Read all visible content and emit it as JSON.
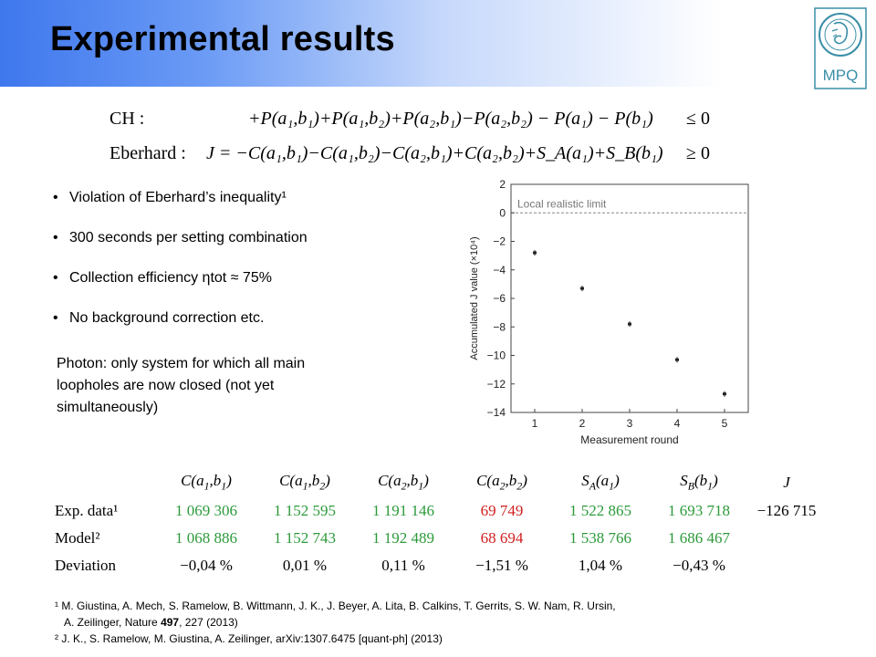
{
  "title": "Experimental results",
  "logo": {
    "text": "MPQ"
  },
  "equations": {
    "ch_label": "CH :",
    "ch_body": "+P(a₁,b₁)+P(a₁,b₂)+P(a₂,b₁)−P(a₂,b₂) − P(a₁) − P(b₁)",
    "ch_rel": "≤ 0",
    "eb_label": "Eberhard :",
    "eb_body": "J  = −C(a₁,b₁)−C(a₁,b₂)−C(a₂,b₁)+C(a₂,b₂)+S_A(a₁)+S_B(b₁)",
    "eb_rel": "≥ 0"
  },
  "bullets": [
    "Violation of Eberhard’s inequality¹",
    "300 seconds per setting combination",
    "Collection efficiency ηtot ≈ 75%",
    "No background correction etc."
  ],
  "note": "Photon: only system for which all main loopholes are now closed (not yet simultaneously)",
  "chart_data": {
    "type": "scatter",
    "xlabel": "Measurement round",
    "ylabel": "Accumulated J value (×10⁴)",
    "x": [
      1,
      2,
      3,
      4,
      5
    ],
    "values": [
      -2.8,
      -5.3,
      -7.8,
      -10.3,
      -12.7
    ],
    "xlim": [
      0.5,
      5.5
    ],
    "ylim": [
      -14,
      2
    ],
    "xticks": [
      "1",
      "2",
      "3",
      "4",
      "5"
    ],
    "yticks": [
      "2",
      "0",
      "−2",
      "−4",
      "−6",
      "−8",
      "−10",
      "−12",
      "−14"
    ],
    "ytick_values": [
      2,
      0,
      -2,
      -4,
      -6,
      -8,
      -10,
      -12,
      -14
    ],
    "reference_line": {
      "y": 0,
      "label": "Local realistic limit"
    },
    "grid": false
  },
  "table": {
    "headers": [
      "C(a1,b1)",
      "C(a1,b2)",
      "C(a2,b1)",
      "C(a2,b2)",
      "SA(a1)",
      "SB(b1)",
      "J"
    ],
    "rows": [
      {
        "label": "Exp. data¹",
        "values": [
          "1 069 306",
          "1 152 595",
          "1 191 146",
          "69 749",
          "1 522 865",
          "1 693 718",
          "−126 715"
        ]
      },
      {
        "label": "Model²",
        "values": [
          "1 068 886",
          "1 152 743",
          "1 192 489",
          "68 694",
          "1 538 766",
          "1 686 467",
          ""
        ]
      },
      {
        "label": "Deviation",
        "values": [
          "−0,04 %",
          "0,01 %",
          "0,11 %",
          "−1,51 %",
          "1,04 %",
          "−0,43 %",
          ""
        ]
      }
    ]
  },
  "refs": {
    "r1_line1": "¹ M. Giustina, A. Mech, S. Ramelow, B. Wittmann, J. K., J. Beyer, A. Lita, B. Calkins, T. Gerrits, S. W. Nam, R. Ursin,",
    "r1_line2_a": "A. Zeilinger, Nature ",
    "r1_line2_b": "497",
    "r1_line2_c": ", 227 (2013)",
    "r2": "² J. K., S. Ramelow, M. Giustina, A. Zeilinger, arXiv:1307.6475 [quant-ph] (2013)"
  },
  "colors": {
    "green": "#2c9a3a",
    "red": "#d22020",
    "header_blue": "#3f78ee"
  }
}
